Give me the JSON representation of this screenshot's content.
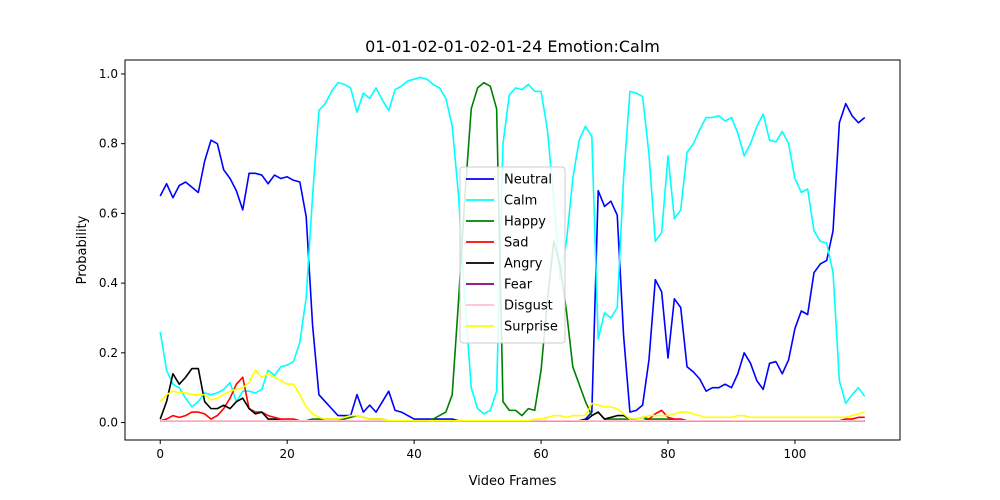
{
  "chart_data": {
    "type": "line",
    "title": "01-01-02-01-02-01-24 Emotion:Calm",
    "xlabel": "Video Frames",
    "ylabel": "Probability",
    "xlim": [
      -5.55,
      116.55
    ],
    "ylim": [
      -0.05,
      1.04
    ],
    "xticks": [
      0,
      20,
      40,
      60,
      80,
      100
    ],
    "yticks": [
      0.0,
      0.2,
      0.4,
      0.6,
      0.8,
      1.0
    ],
    "x": [
      0,
      1,
      2,
      3,
      4,
      5,
      6,
      7,
      8,
      9,
      10,
      11,
      12,
      13,
      14,
      15,
      16,
      17,
      18,
      19,
      20,
      21,
      22,
      23,
      24,
      25,
      26,
      27,
      28,
      29,
      30,
      31,
      32,
      33,
      34,
      35,
      36,
      37,
      38,
      39,
      40,
      41,
      42,
      43,
      44,
      45,
      46,
      47,
      48,
      49,
      50,
      51,
      52,
      53,
      54,
      55,
      56,
      57,
      58,
      59,
      60,
      61,
      62,
      63,
      64,
      65,
      66,
      67,
      68,
      69,
      70,
      71,
      72,
      73,
      74,
      75,
      76,
      77,
      78,
      79,
      80,
      81,
      82,
      83,
      84,
      85,
      86,
      87,
      88,
      89,
      90,
      91,
      92,
      93,
      94,
      95,
      96,
      97,
      98,
      99,
      100,
      101,
      102,
      103,
      104,
      105,
      106,
      107,
      108,
      109,
      110,
      111
    ],
    "legend": "center",
    "series": [
      {
        "name": "Neutral",
        "color": "#0000ff",
        "values": [
          0.65,
          0.685,
          0.645,
          0.68,
          0.69,
          0.675,
          0.66,
          0.75,
          0.81,
          0.8,
          0.725,
          0.7,
          0.665,
          0.61,
          0.715,
          0.715,
          0.71,
          0.685,
          0.71,
          0.7,
          0.705,
          0.695,
          0.69,
          0.59,
          0.28,
          0.08,
          0.06,
          0.04,
          0.02,
          0.02,
          0.02,
          0.08,
          0.03,
          0.05,
          0.03,
          0.06,
          0.09,
          0.035,
          0.03,
          0.02,
          0.01,
          0.01,
          0.01,
          0.01,
          0.01,
          0.01,
          0.01,
          0.005,
          0.005,
          0.005,
          0.005,
          0.005,
          0.005,
          0.005,
          0.005,
          0.005,
          0.005,
          0.005,
          0.005,
          0.005,
          0.005,
          0.005,
          0.005,
          0.005,
          0.005,
          0.005,
          0.005,
          0.01,
          0.03,
          0.665,
          0.62,
          0.635,
          0.595,
          0.25,
          0.03,
          0.035,
          0.05,
          0.18,
          0.41,
          0.375,
          0.185,
          0.355,
          0.33,
          0.16,
          0.145,
          0.125,
          0.09,
          0.1,
          0.1,
          0.11,
          0.1,
          0.14,
          0.2,
          0.17,
          0.12,
          0.095,
          0.17,
          0.175,
          0.14,
          0.18,
          0.27,
          0.32,
          0.31,
          0.43,
          0.455,
          0.465,
          0.55,
          0.86,
          0.915,
          0.88,
          0.86,
          0.875
        ]
      },
      {
        "name": "Calm",
        "color": "#00ffff",
        "values": [
          0.26,
          0.15,
          0.11,
          0.1,
          0.07,
          0.045,
          0.06,
          0.085,
          0.08,
          0.085,
          0.095,
          0.115,
          0.06,
          0.09,
          0.09,
          0.085,
          0.095,
          0.15,
          0.135,
          0.16,
          0.165,
          0.175,
          0.23,
          0.36,
          0.65,
          0.895,
          0.915,
          0.95,
          0.975,
          0.97,
          0.96,
          0.89,
          0.945,
          0.93,
          0.96,
          0.925,
          0.895,
          0.955,
          0.965,
          0.98,
          0.985,
          0.99,
          0.985,
          0.97,
          0.96,
          0.93,
          0.85,
          0.65,
          0.35,
          0.1,
          0.04,
          0.025,
          0.035,
          0.09,
          0.8,
          0.94,
          0.96,
          0.955,
          0.97,
          0.95,
          0.95,
          0.84,
          0.64,
          0.41,
          0.52,
          0.7,
          0.81,
          0.85,
          0.82,
          0.24,
          0.315,
          0.3,
          0.33,
          0.7,
          0.95,
          0.945,
          0.935,
          0.77,
          0.52,
          0.545,
          0.765,
          0.585,
          0.61,
          0.775,
          0.8,
          0.84,
          0.875,
          0.875,
          0.88,
          0.865,
          0.875,
          0.83,
          0.765,
          0.8,
          0.85,
          0.885,
          0.81,
          0.805,
          0.835,
          0.8,
          0.7,
          0.66,
          0.67,
          0.55,
          0.52,
          0.515,
          0.43,
          0.12,
          0.055,
          0.08,
          0.1,
          0.075
        ]
      },
      {
        "name": "Happy",
        "color": "#008000",
        "values": [
          0.005,
          0.005,
          0.005,
          0.005,
          0.005,
          0.005,
          0.005,
          0.005,
          0.005,
          0.005,
          0.005,
          0.005,
          0.005,
          0.005,
          0.005,
          0.005,
          0.005,
          0.005,
          0.005,
          0.005,
          0.005,
          0.005,
          0.005,
          0.005,
          0.01,
          0.01,
          0.01,
          0.01,
          0.01,
          0.01,
          0.015,
          0.02,
          0.015,
          0.01,
          0.01,
          0.01,
          0.005,
          0.005,
          0.005,
          0.005,
          0.005,
          0.005,
          0.005,
          0.01,
          0.02,
          0.03,
          0.08,
          0.35,
          0.65,
          0.9,
          0.96,
          0.975,
          0.965,
          0.9,
          0.06,
          0.035,
          0.035,
          0.02,
          0.04,
          0.035,
          0.15,
          0.35,
          0.52,
          0.45,
          0.32,
          0.16,
          0.11,
          0.06,
          0.02,
          0.03,
          0.01,
          0.01,
          0.01,
          0.01,
          0.01,
          0.01,
          0.015,
          0.01,
          0.01,
          0.01,
          0.01,
          0.005,
          0.005,
          0.005,
          0.005,
          0.005,
          0.005,
          0.005,
          0.005,
          0.005,
          0.005,
          0.005,
          0.005,
          0.005,
          0.005,
          0.005,
          0.005,
          0.005,
          0.005,
          0.005,
          0.005,
          0.005,
          0.005,
          0.005,
          0.005,
          0.005,
          0.005,
          0.005,
          0.005,
          0.005,
          0.005,
          0.005
        ]
      },
      {
        "name": "Sad",
        "color": "#ff0000",
        "values": [
          0.005,
          0.01,
          0.02,
          0.015,
          0.02,
          0.03,
          0.03,
          0.025,
          0.01,
          0.02,
          0.04,
          0.07,
          0.11,
          0.13,
          0.04,
          0.03,
          0.03,
          0.02,
          0.015,
          0.01,
          0.01,
          0.01,
          0.005,
          0.005,
          0.005,
          0.005,
          0.005,
          0.005,
          0.005,
          0.005,
          0.005,
          0.005,
          0.005,
          0.005,
          0.005,
          0.005,
          0.005,
          0.005,
          0.005,
          0.005,
          0.005,
          0.005,
          0.005,
          0.005,
          0.005,
          0.005,
          0.005,
          0.005,
          0.005,
          0.005,
          0.005,
          0.005,
          0.005,
          0.005,
          0.005,
          0.005,
          0.005,
          0.005,
          0.005,
          0.005,
          0.005,
          0.005,
          0.005,
          0.005,
          0.005,
          0.005,
          0.005,
          0.005,
          0.005,
          0.005,
          0.005,
          0.005,
          0.005,
          0.005,
          0.005,
          0.005,
          0.005,
          0.01,
          0.025,
          0.035,
          0.015,
          0.01,
          0.01,
          0.005,
          0.005,
          0.005,
          0.005,
          0.005,
          0.005,
          0.005,
          0.005,
          0.005,
          0.005,
          0.005,
          0.005,
          0.005,
          0.005,
          0.005,
          0.005,
          0.005,
          0.005,
          0.005,
          0.005,
          0.005,
          0.005,
          0.005,
          0.005,
          0.005,
          0.01,
          0.01,
          0.015,
          0.015
        ]
      },
      {
        "name": "Angry",
        "color": "#000000",
        "values": [
          0.01,
          0.06,
          0.14,
          0.11,
          0.13,
          0.155,
          0.155,
          0.06,
          0.04,
          0.04,
          0.05,
          0.04,
          0.06,
          0.07,
          0.04,
          0.025,
          0.03,
          0.01,
          0.01,
          0.005,
          0.005,
          0.005,
          0.005,
          0.005,
          0.005,
          0.005,
          0.005,
          0.005,
          0.005,
          0.005,
          0.005,
          0.005,
          0.005,
          0.005,
          0.005,
          0.005,
          0.005,
          0.005,
          0.005,
          0.005,
          0.005,
          0.005,
          0.005,
          0.005,
          0.005,
          0.005,
          0.005,
          0.005,
          0.005,
          0.005,
          0.005,
          0.005,
          0.005,
          0.005,
          0.005,
          0.005,
          0.005,
          0.005,
          0.005,
          0.005,
          0.005,
          0.005,
          0.005,
          0.005,
          0.005,
          0.005,
          0.005,
          0.005,
          0.02,
          0.03,
          0.01,
          0.015,
          0.02,
          0.02,
          0.01,
          0.005,
          0.005,
          0.005,
          0.005,
          0.005,
          0.005,
          0.005,
          0.005,
          0.005,
          0.005,
          0.005,
          0.005,
          0.005,
          0.005,
          0.005,
          0.005,
          0.005,
          0.005,
          0.005,
          0.005,
          0.005,
          0.005,
          0.005,
          0.005,
          0.005,
          0.005,
          0.005,
          0.005,
          0.005,
          0.005,
          0.005,
          0.005,
          0.005,
          0.005,
          0.005,
          0.005,
          0.005
        ]
      },
      {
        "name": "Fear",
        "color": "#800080",
        "values": [
          0.005,
          0.005,
          0.005,
          0.005,
          0.005,
          0.005,
          0.005,
          0.005,
          0.005,
          0.005,
          0.005,
          0.005,
          0.005,
          0.005,
          0.005,
          0.005,
          0.005,
          0.005,
          0.005,
          0.005,
          0.005,
          0.005,
          0.005,
          0.005,
          0.005,
          0.005,
          0.005,
          0.005,
          0.005,
          0.005,
          0.005,
          0.005,
          0.005,
          0.005,
          0.005,
          0.005,
          0.005,
          0.005,
          0.005,
          0.005,
          0.005,
          0.005,
          0.005,
          0.005,
          0.005,
          0.005,
          0.005,
          0.005,
          0.005,
          0.005,
          0.005,
          0.005,
          0.005,
          0.005,
          0.005,
          0.005,
          0.005,
          0.005,
          0.005,
          0.005,
          0.005,
          0.005,
          0.005,
          0.005,
          0.005,
          0.005,
          0.005,
          0.005,
          0.005,
          0.005,
          0.005,
          0.005,
          0.005,
          0.005,
          0.005,
          0.005,
          0.005,
          0.005,
          0.005,
          0.005,
          0.005,
          0.005,
          0.005,
          0.005,
          0.005,
          0.005,
          0.005,
          0.005,
          0.005,
          0.005,
          0.005,
          0.005,
          0.005,
          0.005,
          0.005,
          0.005,
          0.005,
          0.005,
          0.005,
          0.005,
          0.005,
          0.005,
          0.005,
          0.005,
          0.005,
          0.005,
          0.005,
          0.005,
          0.005,
          0.005,
          0.005,
          0.005
        ]
      },
      {
        "name": "Disgust",
        "color": "#ffc0cb",
        "values": [
          0.005,
          0.005,
          0.005,
          0.005,
          0.005,
          0.005,
          0.005,
          0.005,
          0.005,
          0.005,
          0.005,
          0.005,
          0.005,
          0.005,
          0.005,
          0.005,
          0.005,
          0.005,
          0.005,
          0.005,
          0.005,
          0.005,
          0.005,
          0.005,
          0.005,
          0.005,
          0.005,
          0.005,
          0.005,
          0.005,
          0.005,
          0.005,
          0.005,
          0.005,
          0.005,
          0.005,
          0.005,
          0.005,
          0.005,
          0.005,
          0.005,
          0.005,
          0.005,
          0.005,
          0.005,
          0.005,
          0.005,
          0.005,
          0.005,
          0.005,
          0.005,
          0.005,
          0.005,
          0.005,
          0.005,
          0.005,
          0.005,
          0.005,
          0.005,
          0.005,
          0.005,
          0.005,
          0.005,
          0.005,
          0.005,
          0.005,
          0.005,
          0.005,
          0.005,
          0.005,
          0.005,
          0.005,
          0.005,
          0.005,
          0.005,
          0.005,
          0.005,
          0.005,
          0.005,
          0.005,
          0.005,
          0.005,
          0.005,
          0.005,
          0.005,
          0.005,
          0.005,
          0.005,
          0.005,
          0.005,
          0.005,
          0.005,
          0.005,
          0.005,
          0.005,
          0.005,
          0.005,
          0.005,
          0.005,
          0.005,
          0.005,
          0.005,
          0.005,
          0.005,
          0.005,
          0.005,
          0.005,
          0.005,
          0.005,
          0.005,
          0.005,
          0.005
        ]
      },
      {
        "name": "Surprise",
        "color": "#ffff00",
        "values": [
          0.06,
          0.08,
          0.09,
          0.085,
          0.085,
          0.08,
          0.08,
          0.08,
          0.065,
          0.07,
          0.08,
          0.09,
          0.095,
          0.1,
          0.115,
          0.15,
          0.13,
          0.14,
          0.13,
          0.12,
          0.11,
          0.11,
          0.08,
          0.045,
          0.025,
          0.015,
          0.01,
          0.01,
          0.01,
          0.015,
          0.02,
          0.02,
          0.015,
          0.01,
          0.01,
          0.01,
          0.005,
          0.005,
          0.005,
          0.005,
          0.005,
          0.005,
          0.005,
          0.005,
          0.005,
          0.005,
          0.005,
          0.005,
          0.005,
          0.005,
          0.005,
          0.005,
          0.005,
          0.005,
          0.005,
          0.005,
          0.005,
          0.005,
          0.005,
          0.01,
          0.01,
          0.015,
          0.02,
          0.02,
          0.015,
          0.02,
          0.02,
          0.02,
          0.055,
          0.05,
          0.045,
          0.045,
          0.04,
          0.025,
          0.01,
          0.01,
          0.015,
          0.02,
          0.02,
          0.02,
          0.02,
          0.025,
          0.03,
          0.03,
          0.025,
          0.02,
          0.015,
          0.015,
          0.015,
          0.015,
          0.015,
          0.02,
          0.02,
          0.015,
          0.015,
          0.015,
          0.015,
          0.015,
          0.015,
          0.015,
          0.015,
          0.015,
          0.015,
          0.015,
          0.015,
          0.015,
          0.015,
          0.015,
          0.015,
          0.02,
          0.025,
          0.03
        ]
      }
    ]
  }
}
